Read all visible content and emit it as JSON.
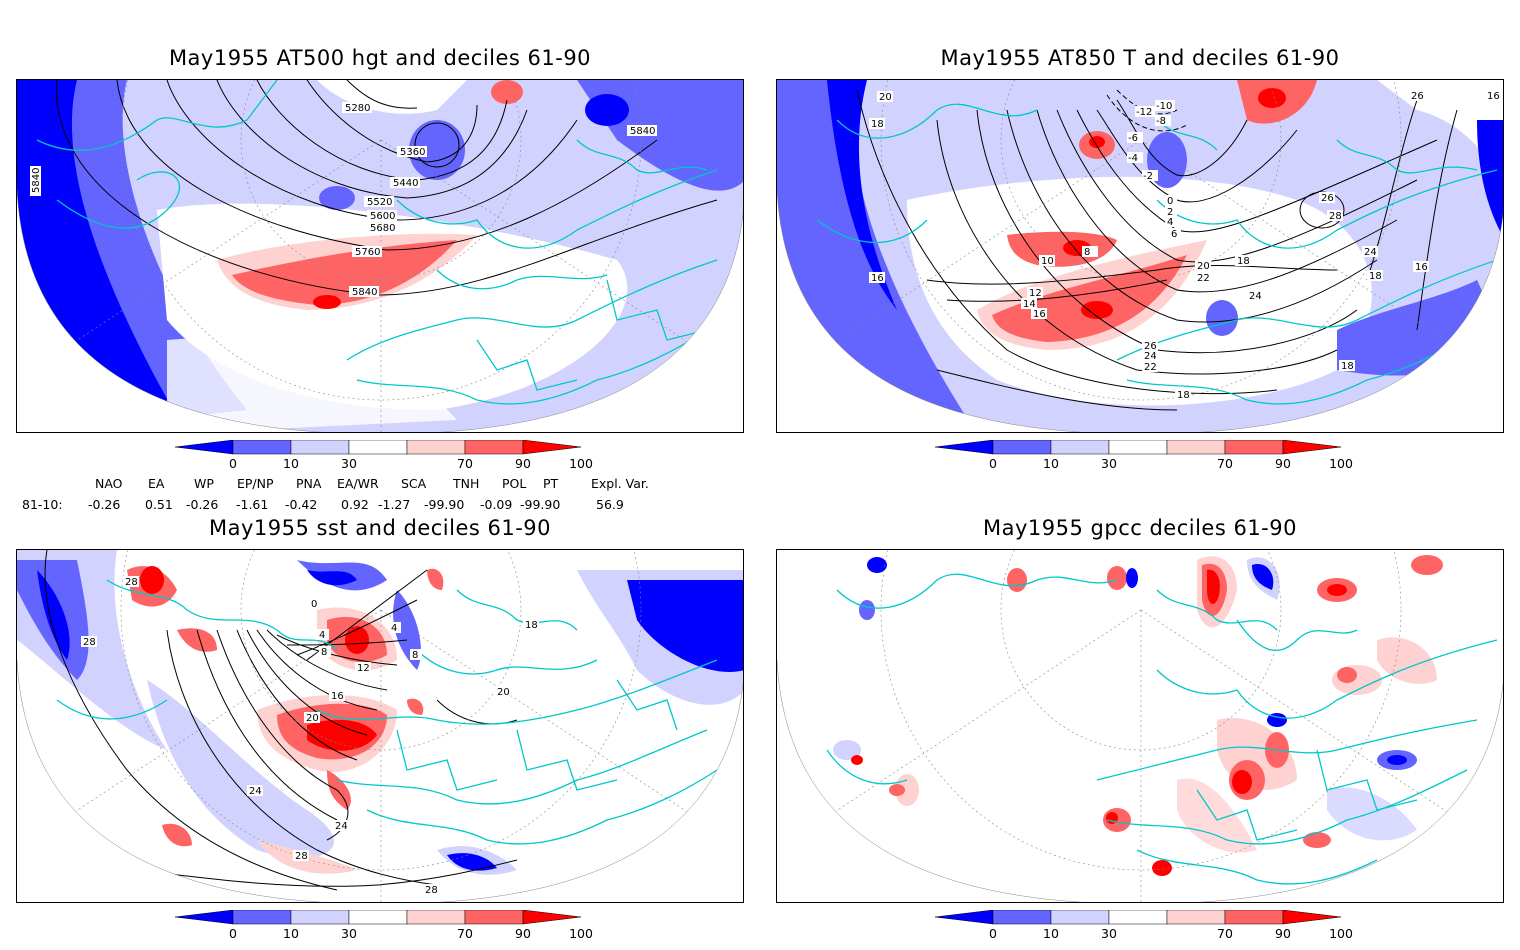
{
  "panels": [
    {
      "id": "at500",
      "title": "May1955 AT500 hgt and deciles 61-90",
      "contour_labels": [
        "5280",
        "5360",
        "5440",
        "5520",
        "5600",
        "5680",
        "5760",
        "5840",
        "5840",
        "5840"
      ]
    },
    {
      "id": "at850",
      "title": "May1955 AT850 T and deciles 61-90",
      "contour_labels": [
        "20",
        "18",
        "16",
        "-12",
        "-10",
        "-8",
        "-6",
        "-4",
        "-2",
        "0",
        "2",
        "4",
        "6",
        "8",
        "10",
        "12",
        "14",
        "16",
        "18",
        "20",
        "22",
        "24",
        "26",
        "28",
        "24",
        "18",
        "16",
        "26",
        "16",
        "18",
        "22",
        "24",
        "26",
        "18"
      ]
    },
    {
      "id": "sst",
      "title": "May1955 sst and deciles 61-90",
      "contour_labels": [
        "28",
        "28",
        "24",
        "0",
        "4",
        "8",
        "12",
        "16",
        "20",
        "24",
        "28",
        "28",
        "18",
        "20",
        "4",
        "8"
      ]
    },
    {
      "id": "gpcc",
      "title": "May1955 gpcc deciles 61-90",
      "contour_labels": []
    }
  ],
  "colorbar": {
    "ticks": [
      "0",
      "10",
      "30",
      "70",
      "90",
      "100"
    ],
    "colors": [
      "#0000ff",
      "#6464ff",
      "#d2d2ff",
      "#ffffff",
      "#ffd2d2",
      "#ff6464",
      "#ff0000"
    ]
  },
  "indices": {
    "headers": [
      "NAO",
      "EA",
      "WP",
      "EP/NP",
      "PNA",
      "EA/WR",
      "SCA",
      "TNH",
      "POL",
      "PT",
      "Expl. Var."
    ],
    "row_label": "81-10:",
    "values": [
      "-0.26",
      "0.51",
      "-0.26",
      "-1.61",
      "-0.42",
      "0.92",
      "-1.27",
      "-99.90",
      "-0.09",
      "-99.90",
      "56.9"
    ]
  }
}
